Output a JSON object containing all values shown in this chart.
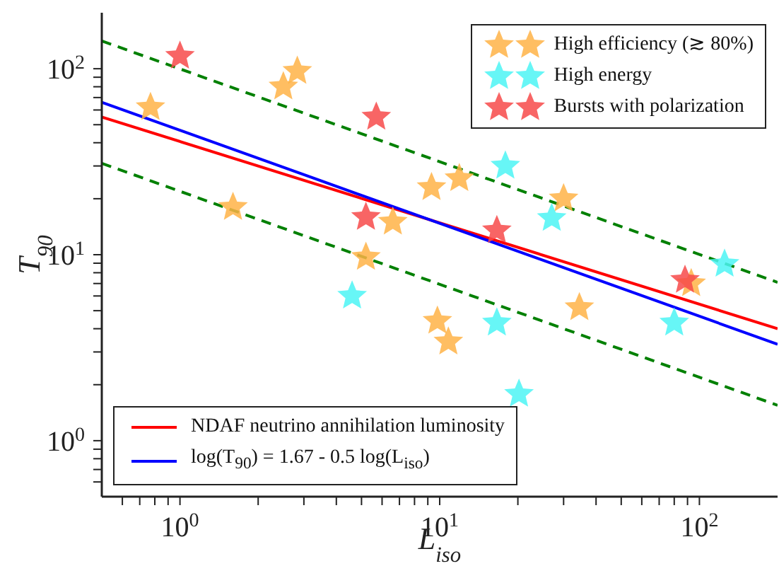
{
  "chart_data": {
    "type": "scatter",
    "xlabel": "L$_{iso}$",
    "ylabel": "T$_{90}$",
    "log": "xy",
    "marker": "star",
    "legend": "top right",
    "xlim": [
      0.5,
      200
    ],
    "ylim": [
      0.5,
      200
    ],
    "xticks": [
      {
        "value": 0.6,
        "label": null
      },
      {
        "value": 0.7,
        "label": null
      },
      {
        "value": 0.8,
        "label": null
      },
      {
        "value": 0.9,
        "label": null
      },
      {
        "value": 1,
        "label": "10$^{0}$"
      },
      {
        "value": 2,
        "label": null
      },
      {
        "value": 3,
        "label": null
      },
      {
        "value": 4,
        "label": null
      },
      {
        "value": 5,
        "label": null
      },
      {
        "value": 6,
        "label": null
      },
      {
        "value": 7,
        "label": null
      },
      {
        "value": 8,
        "label": null
      },
      {
        "value": 9,
        "label": null
      },
      {
        "value": 10,
        "label": "10$^{1}$"
      },
      {
        "value": 20,
        "label": null
      },
      {
        "value": 30,
        "label": null
      },
      {
        "value": 40,
        "label": null
      },
      {
        "value": 50,
        "label": null
      },
      {
        "value": 60,
        "label": null
      },
      {
        "value": 70,
        "label": null
      },
      {
        "value": 80,
        "label": null
      },
      {
        "value": 90,
        "label": null
      },
      {
        "value": 100,
        "label": "10$^{2}$"
      }
    ],
    "yticks": [
      {
        "value": 0.6,
        "label": null
      },
      {
        "value": 0.7,
        "label": null
      },
      {
        "value": 0.8,
        "label": null
      },
      {
        "value": 0.9,
        "label": null
      },
      {
        "value": 1,
        "label": "10$^{0}$"
      },
      {
        "value": 2,
        "label": null
      },
      {
        "value": 3,
        "label": null
      },
      {
        "value": 4,
        "label": null
      },
      {
        "value": 5,
        "label": null
      },
      {
        "value": 6,
        "label": null
      },
      {
        "value": 7,
        "label": null
      },
      {
        "value": 8,
        "label": null
      },
      {
        "value": 9,
        "label": null
      },
      {
        "value": 10,
        "label": "10$^{1}$"
      },
      {
        "value": 20,
        "label": null
      },
      {
        "value": 30,
        "label": null
      },
      {
        "value": 40,
        "label": null
      },
      {
        "value": 50,
        "label": null
      },
      {
        "value": 60,
        "label": null
      },
      {
        "value": 70,
        "label": null
      },
      {
        "value": 80,
        "label": null
      },
      {
        "value": 90,
        "label": null
      },
      {
        "value": 100,
        "label": "10$^{2}$"
      }
    ],
    "series": [
      {
        "type": "line",
        "marker": "none",
        "color": "#008000",
        "line_style": "dashed",
        "x": [
          0.5,
          200
        ],
        "values": [
          141,
          7.1
        ]
      },
      {
        "type": "line",
        "marker": "none",
        "color": "#008000",
        "line_style": "dashed",
        "x": [
          0.5,
          200
        ],
        "values": [
          31,
          1.55
        ]
      },
      {
        "type": "line",
        "marker": "none",
        "name": "NDAF neutrino annihilation luminosity",
        "color": "#ff0000",
        "line_style": "solid",
        "x": [
          0.5,
          200
        ],
        "values": [
          55,
          4.0
        ]
      },
      {
        "type": "line",
        "marker": "none",
        "name": "log(T$_{90}$) = 1.67 - 0.5 log(L$_{iso}$)",
        "color": "#0000ff",
        "line_style": "solid",
        "x": [
          0.5,
          200
        ],
        "values": [
          66,
          3.3
        ]
      },
      {
        "name": "High efficiency (≳ 80%)",
        "color": "#ffb347",
        "x": [
          0.77,
          2.5,
          2.83,
          1.6,
          6.6,
          5.2,
          9.3,
          11.9,
          30,
          93,
          34.5,
          9.8,
          10.8
        ],
        "values": [
          62,
          80,
          97,
          18,
          15,
          9.7,
          23,
          25.7,
          20,
          7.0,
          5.2,
          4.4,
          3.4
        ]
      },
      {
        "name": "High energy",
        "color": "#4cf5f5",
        "x": [
          4.6,
          16.6,
          20.2,
          80,
          125,
          17.9,
          27
        ],
        "values": [
          6.0,
          4.3,
          1.78,
          4.3,
          8.9,
          30,
          15.7
        ]
      },
      {
        "name": "Bursts with polarization",
        "color": "#f74a4a",
        "x": [
          1.0,
          5.7,
          5.2,
          16.6,
          88
        ],
        "values": [
          117,
          55,
          15.9,
          13.5,
          7.3
        ]
      }
    ]
  }
}
